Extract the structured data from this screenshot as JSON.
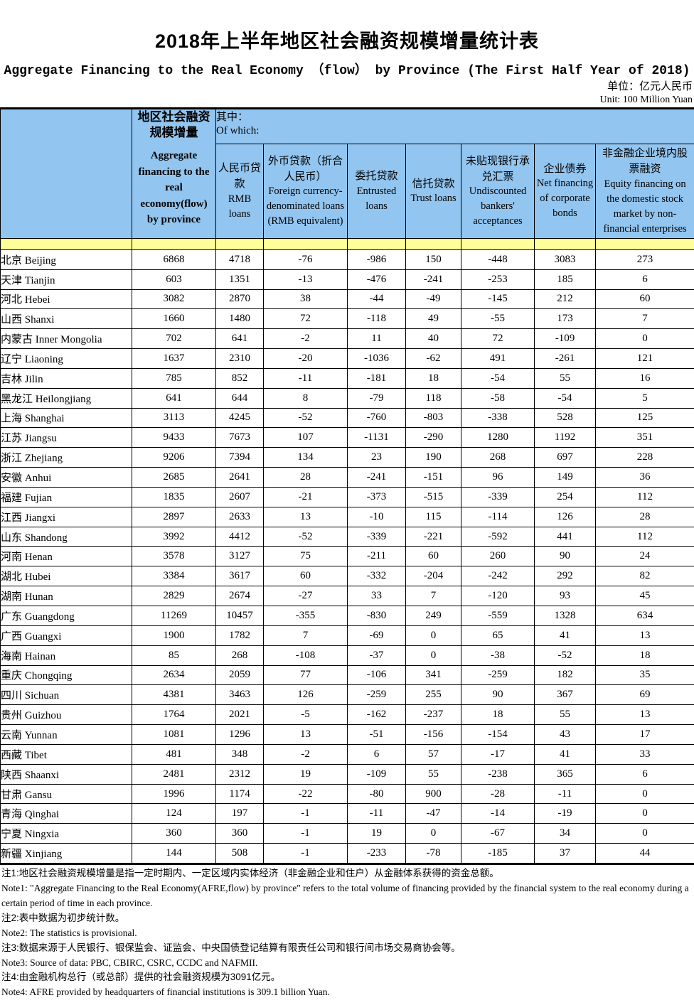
{
  "title": "2018年上半年地区社会融资规模增量统计表",
  "subtitle": "Aggregate Financing to the Real Economy （flow） by Province (The First Half Year of 2018)",
  "unit_cn": "单位：亿元人民币",
  "unit_en": "Unit: 100 Million Yuan",
  "colors": {
    "header_blue": "#92c5ef",
    "stripe_yellow": "#ffff99"
  },
  "table": {
    "aggregate_header": {
      "cn": "地区社会融资规模增量",
      "en": "Aggregate financing to the real economy(flow) by province"
    },
    "of_which": {
      "cn": "其中：",
      "en": "Of which:"
    },
    "columns": [
      {
        "cn": "人民币贷款",
        "en": "RMB loans"
      },
      {
        "cn": "外币贷款（折合人民币）",
        "en": "Foreign currency-denominated loans (RMB equivalent)"
      },
      {
        "cn": "委托贷款",
        "en": "Entrusted loans"
      },
      {
        "cn": "信托贷款",
        "en": "Trust loans"
      },
      {
        "cn": "未贴现银行承兑汇票",
        "en": "Undiscounted bankers' acceptances"
      },
      {
        "cn": "企业债券",
        "en": "Net financing of corporate bonds"
      },
      {
        "cn": "非金融企业境内股票融资",
        "en": "Equity financing on the domestic stock market by non-financial enterprises"
      }
    ],
    "rows": [
      {
        "province_cn": "北京",
        "province_en": "Beijing",
        "values": [
          6868,
          4718,
          -76,
          -986,
          150,
          -448,
          3083,
          273
        ]
      },
      {
        "province_cn": "天津",
        "province_en": "Tianjin",
        "values": [
          603,
          1351,
          -13,
          -476,
          -241,
          -253,
          185,
          6
        ]
      },
      {
        "province_cn": "河北",
        "province_en": "Hebei",
        "values": [
          3082,
          2870,
          38,
          -44,
          -49,
          -145,
          212,
          60
        ]
      },
      {
        "province_cn": "山西",
        "province_en": "Shanxi",
        "values": [
          1660,
          1480,
          72,
          -118,
          49,
          -55,
          173,
          7
        ]
      },
      {
        "province_cn": "内蒙古",
        "province_en": "Inner Mongolia",
        "values": [
          702,
          641,
          -2,
          11,
          40,
          72,
          -109,
          0
        ]
      },
      {
        "province_cn": "辽宁",
        "province_en": "Liaoning",
        "values": [
          1637,
          2310,
          -20,
          -1036,
          -62,
          491,
          -261,
          121
        ]
      },
      {
        "province_cn": "吉林",
        "province_en": "Jilin",
        "values": [
          785,
          852,
          -11,
          -181,
          18,
          -54,
          55,
          16
        ]
      },
      {
        "province_cn": "黑龙江",
        "province_en": "Heilongjiang",
        "values": [
          641,
          644,
          8,
          -79,
          118,
          -58,
          -54,
          5
        ]
      },
      {
        "province_cn": "上海",
        "province_en": "Shanghai",
        "values": [
          3113,
          4245,
          -52,
          -760,
          -803,
          -338,
          528,
          125
        ]
      },
      {
        "province_cn": "江苏",
        "province_en": "Jiangsu",
        "values": [
          9433,
          7673,
          107,
          -1131,
          -290,
          1280,
          1192,
          351
        ]
      },
      {
        "province_cn": "浙江",
        "province_en": "Zhejiang",
        "values": [
          9206,
          7394,
          134,
          23,
          190,
          268,
          697,
          228
        ]
      },
      {
        "province_cn": "安徽",
        "province_en": "Anhui",
        "values": [
          2685,
          2641,
          28,
          -241,
          -151,
          96,
          149,
          36
        ]
      },
      {
        "province_cn": "福建",
        "province_en": "Fujian",
        "values": [
          1835,
          2607,
          -21,
          -373,
          -515,
          -339,
          254,
          112
        ]
      },
      {
        "province_cn": "江西",
        "province_en": "Jiangxi",
        "values": [
          2897,
          2633,
          13,
          -10,
          115,
          -114,
          126,
          28
        ]
      },
      {
        "province_cn": "山东",
        "province_en": "Shandong",
        "values": [
          3992,
          4412,
          -52,
          -339,
          -221,
          -592,
          441,
          112
        ]
      },
      {
        "province_cn": "河南",
        "province_en": "Henan",
        "values": [
          3578,
          3127,
          75,
          -211,
          60,
          260,
          90,
          24
        ]
      },
      {
        "province_cn": "湖北",
        "province_en": "Hubei",
        "values": [
          3384,
          3617,
          60,
          -332,
          -204,
          -242,
          292,
          82
        ]
      },
      {
        "province_cn": "湖南",
        "province_en": "Hunan",
        "values": [
          2829,
          2674,
          -27,
          33,
          7,
          -120,
          93,
          45
        ]
      },
      {
        "province_cn": "广东",
        "province_en": "Guangdong",
        "values": [
          11269,
          10457,
          -355,
          -830,
          249,
          -559,
          1328,
          634
        ]
      },
      {
        "province_cn": "广西",
        "province_en": "Guangxi",
        "values": [
          1900,
          1782,
          7,
          -69,
          0,
          65,
          41,
          13
        ]
      },
      {
        "province_cn": "海南",
        "province_en": "Hainan",
        "values": [
          85,
          268,
          -108,
          -37,
          0,
          -38,
          -52,
          18
        ]
      },
      {
        "province_cn": "重庆",
        "province_en": "Chongqing",
        "values": [
          2634,
          2059,
          77,
          -106,
          341,
          -259,
          182,
          35
        ]
      },
      {
        "province_cn": "四川",
        "province_en": "Sichuan",
        "values": [
          4381,
          3463,
          126,
          -259,
          255,
          90,
          367,
          69
        ]
      },
      {
        "province_cn": "贵州",
        "province_en": "Guizhou",
        "values": [
          1764,
          2021,
          -5,
          -162,
          -237,
          18,
          55,
          13
        ]
      },
      {
        "province_cn": "云南",
        "province_en": "Yunnan",
        "values": [
          1081,
          1296,
          13,
          -51,
          -156,
          -154,
          43,
          17
        ]
      },
      {
        "province_cn": "西藏",
        "province_en": "Tibet",
        "values": [
          481,
          348,
          -2,
          6,
          57,
          -17,
          41,
          33
        ]
      },
      {
        "province_cn": "陕西",
        "province_en": "Shaanxi",
        "values": [
          2481,
          2312,
          19,
          -109,
          55,
          -238,
          365,
          6
        ]
      },
      {
        "province_cn": "甘肃",
        "province_en": "Gansu",
        "values": [
          1996,
          1174,
          -22,
          -80,
          900,
          -28,
          -11,
          0
        ]
      },
      {
        "province_cn": "青海",
        "province_en": "Qinghai",
        "values": [
          124,
          197,
          -1,
          -11,
          -47,
          -14,
          -19,
          0
        ]
      },
      {
        "province_cn": "宁夏",
        "province_en": "Ningxia",
        "values": [
          360,
          360,
          -1,
          19,
          0,
          -67,
          34,
          0
        ]
      },
      {
        "province_cn": "新疆",
        "province_en": "Xinjiang",
        "values": [
          144,
          508,
          -1,
          -233,
          -78,
          -185,
          37,
          44
        ]
      }
    ]
  },
  "notes": [
    {
      "cn": "注1:地区社会融资规模增量是指一定时期内、一定区域内实体经济（非金融企业和住户）从金融体系获得的资金总额。",
      "en": "Note1: \"Aggregate Financing to the Real Economy(AFRE,flow) by province\" refers to the total volume of financing provided by the financial system to the real economy during a certain period of time in each province."
    },
    {
      "cn": "注2:表中数据为初步统计数。",
      "en": "Note2: The statistics is provisional."
    },
    {
      "cn": "注3:数据来源于人民银行、银保监会、证监会、中央国债登记结算有限责任公司和银行间市场交易商协会等。",
      "en": "Note3: Source of data: PBC, CBIRC, CSRC, CCDC and NAFMII."
    },
    {
      "cn": "注4:由金融机构总行（或总部）提供的社会融资规模为3091亿元。",
      "en": "Note4: AFRE provided by headquarters of financial institutions is 309.1 billion Yuan."
    }
  ]
}
